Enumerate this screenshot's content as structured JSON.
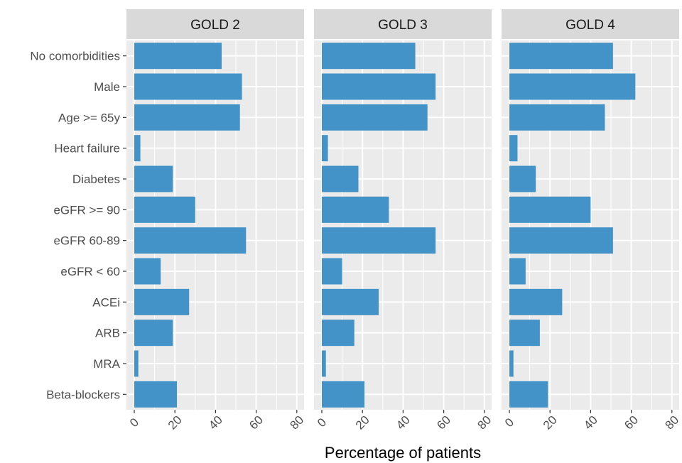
{
  "chart_data": {
    "type": "bar",
    "orientation": "horizontal",
    "xlabel": "Percentage of patients",
    "ylabel": "",
    "xlim": [
      0,
      83
    ],
    "xticks": [
      "0",
      "20",
      "40",
      "60",
      "80"
    ],
    "grid": true,
    "legend": "none",
    "categories": [
      "No comorbidities",
      "Male",
      "Age >= 65y",
      "Heart failure",
      "Diabetes",
      "eGFR >= 90",
      "eGFR 60-89",
      "eGFR < 60",
      "ACEi",
      "ARB",
      "MRA",
      "Beta-blockers"
    ],
    "panels": [
      {
        "name": "GOLD 2",
        "values": [
          43,
          53,
          52,
          3,
          19,
          30,
          55,
          13,
          27,
          19,
          2,
          21
        ]
      },
      {
        "name": "GOLD 3",
        "values": [
          46,
          56,
          52,
          3,
          18,
          33,
          56,
          10,
          28,
          16,
          2,
          21
        ]
      },
      {
        "name": "GOLD 4",
        "values": [
          51,
          62,
          47,
          4,
          13,
          40,
          51,
          8,
          26,
          15,
          2,
          19
        ]
      }
    ]
  },
  "colors": {
    "bar": "#4493c8",
    "panel_background": "#ebebeb",
    "strip_background": "#d9d9d9",
    "grid": "#ffffff"
  }
}
